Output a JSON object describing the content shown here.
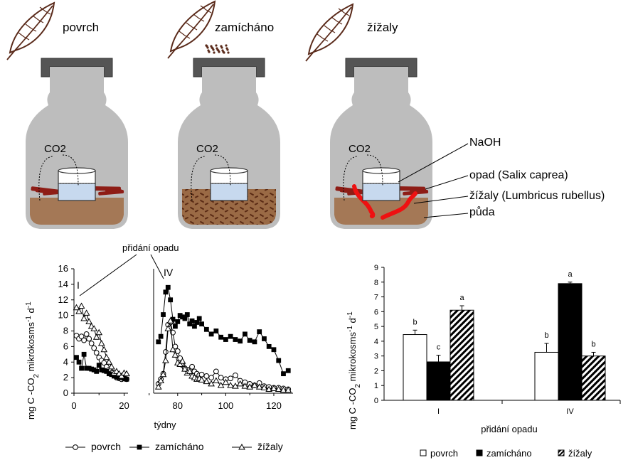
{
  "jars": [
    {
      "title": "povrch",
      "co2_label": "CO2"
    },
    {
      "title": "zamícháno",
      "co2_label": "CO2"
    },
    {
      "title": "žížaly",
      "co2_label": "CO2"
    }
  ],
  "callouts": [
    "NaOH",
    "opad (Salix caprea)",
    "žížaly (Lumbricus rubellus)",
    "půda"
  ],
  "line_chart_annot": {
    "added": "přidání opadu",
    "mark_I": "I",
    "mark_IV": "IV"
  },
  "bar_chart_annot": {
    "xlabel": "přidání opadu"
  },
  "legend_line": [
    "povrch",
    "zamícháno",
    "žížaly"
  ],
  "legend_bar": [
    "povrch",
    "zamícháno",
    "žížaly"
  ],
  "chart_data": [
    {
      "type": "line",
      "xlabel": "týdny",
      "ylabel": "mg C-CO2 mikrokosms-1 d-1",
      "ylim": [
        0,
        16
      ],
      "yticks": [
        "0",
        "2",
        "4",
        "6",
        "8",
        "10",
        "12",
        "14",
        "16"
      ],
      "xticks": [
        "0",
        "20",
        "80",
        "100",
        "120"
      ],
      "axis_breaks": true,
      "series": [
        {
          "name": "povrch",
          "x": [
            1,
            2,
            3,
            4,
            5,
            6,
            7,
            8,
            9,
            10,
            11,
            12,
            13,
            14,
            15,
            16,
            17,
            18,
            19,
            20,
            21,
            72,
            73,
            74,
            75,
            76,
            77,
            78,
            79,
            80,
            81,
            82,
            83,
            84,
            85,
            86,
            87,
            88,
            89,
            90,
            92,
            94,
            96,
            98,
            100,
            102,
            104,
            106,
            108,
            110,
            112,
            114,
            116,
            118,
            120,
            122,
            124,
            126
          ],
          "y": [
            7.4,
            7.0,
            7.3,
            6.8,
            7.6,
            7.0,
            6.4,
            5.8,
            5.2,
            4.6,
            4.2,
            3.9,
            3.4,
            3.0,
            2.6,
            2.3,
            2.0,
            1.9,
            1.8,
            1.9,
            1.8,
            1.2,
            1.8,
            2.5,
            5.3,
            8.8,
            9.1,
            7.8,
            6.0,
            5.4,
            4.5,
            3.6,
            3.2,
            3.0,
            3.0,
            3.4,
            2.8,
            2.5,
            2.3,
            2.4,
            2.2,
            2.0,
            2.8,
            2.0,
            1.8,
            1.9,
            2.3,
            1.6,
            1.4,
            1.2,
            1.0,
            1.3,
            0.9,
            0.8,
            0.7,
            0.7,
            0.6,
            0.5
          ]
        },
        {
          "name": "zamícháno",
          "x": [
            1,
            2,
            3,
            4,
            5,
            6,
            7,
            8,
            9,
            10,
            11,
            12,
            13,
            14,
            15,
            16,
            17,
            18,
            19,
            20,
            21,
            72,
            73,
            74,
            75,
            76,
            77,
            78,
            79,
            80,
            81,
            82,
            83,
            84,
            85,
            86,
            87,
            88,
            89,
            90,
            92,
            94,
            96,
            98,
            100,
            102,
            104,
            106,
            108,
            110,
            112,
            114,
            116,
            118,
            120,
            122,
            124,
            126
          ],
          "y": [
            4.6,
            4.0,
            3.2,
            5.0,
            3.2,
            3.2,
            3.1,
            3.0,
            2.8,
            3.6,
            3.0,
            2.9,
            2.8,
            2.5,
            2.4,
            2.2,
            2.1,
            2.0,
            2.0,
            1.9,
            1.8,
            6.6,
            7.3,
            10.1,
            13.0,
            13.6,
            12.0,
            9.5,
            8.6,
            9.2,
            10.0,
            9.8,
            9.6,
            10.1,
            8.9,
            9.3,
            8.6,
            9.1,
            9.6,
            8.9,
            8.2,
            7.6,
            8.0,
            7.2,
            6.9,
            7.3,
            6.9,
            6.7,
            7.6,
            6.8,
            6.6,
            7.9,
            7.0,
            6.0,
            5.6,
            4.2,
            2.5,
            2.9
          ]
        },
        {
          "name": "žížaly",
          "x": [
            1,
            2,
            3,
            4,
            5,
            6,
            7,
            8,
            9,
            10,
            11,
            12,
            13,
            14,
            15,
            16,
            17,
            18,
            19,
            20,
            21,
            72,
            73,
            74,
            75,
            76,
            77,
            78,
            79,
            80,
            81,
            82,
            83,
            84,
            85,
            86,
            87,
            88,
            89,
            90,
            92,
            94,
            96,
            98,
            100,
            102,
            104,
            106,
            108,
            110,
            112,
            114,
            116,
            118,
            120,
            122,
            124,
            126
          ],
          "y": [
            11.0,
            10.5,
            11.2,
            9.6,
            10.3,
            9.2,
            8.6,
            8.3,
            7.2,
            7.8,
            6.4,
            5.6,
            4.6,
            4.0,
            3.4,
            2.6,
            2.8,
            2.5,
            2.2,
            2.6,
            2.5,
            0.8,
            1.6,
            2.4,
            4.2,
            8.3,
            9.3,
            5.6,
            4.9,
            3.9,
            3.7,
            4.1,
            3.1,
            2.6,
            2.8,
            2.2,
            2.0,
            1.8,
            1.9,
            1.7,
            1.5,
            1.2,
            1.6,
            1.0,
            1.4,
            1.0,
            0.9,
            1.2,
            0.9,
            0.8,
            1.0,
            0.8,
            0.7,
            0.5,
            0.6,
            0.5,
            0.4,
            0.4
          ]
        }
      ]
    },
    {
      "type": "bar",
      "ylabel": "mg C-CO2 mikrokosms-1 d-1",
      "xlabel": "přidání opadu",
      "ylim": [
        0,
        9
      ],
      "yticks": [
        "0",
        "1",
        "2",
        "3",
        "4",
        "5",
        "6",
        "7",
        "8",
        "9"
      ],
      "categories": [
        "I",
        "IV"
      ],
      "series": [
        {
          "name": "povrch",
          "values": [
            4.45,
            3.25
          ],
          "errors": [
            0.3,
            0.6
          ],
          "letters": [
            "b",
            "b"
          ]
        },
        {
          "name": "zamícháno",
          "values": [
            2.6,
            7.9
          ],
          "errors": [
            0.45,
            0.1
          ],
          "letters": [
            "c",
            "a"
          ]
        },
        {
          "name": "žížaly",
          "values": [
            6.1,
            3.0
          ],
          "errors": [
            0.3,
            0.25
          ],
          "letters": [
            "a",
            "b"
          ]
        }
      ]
    }
  ]
}
